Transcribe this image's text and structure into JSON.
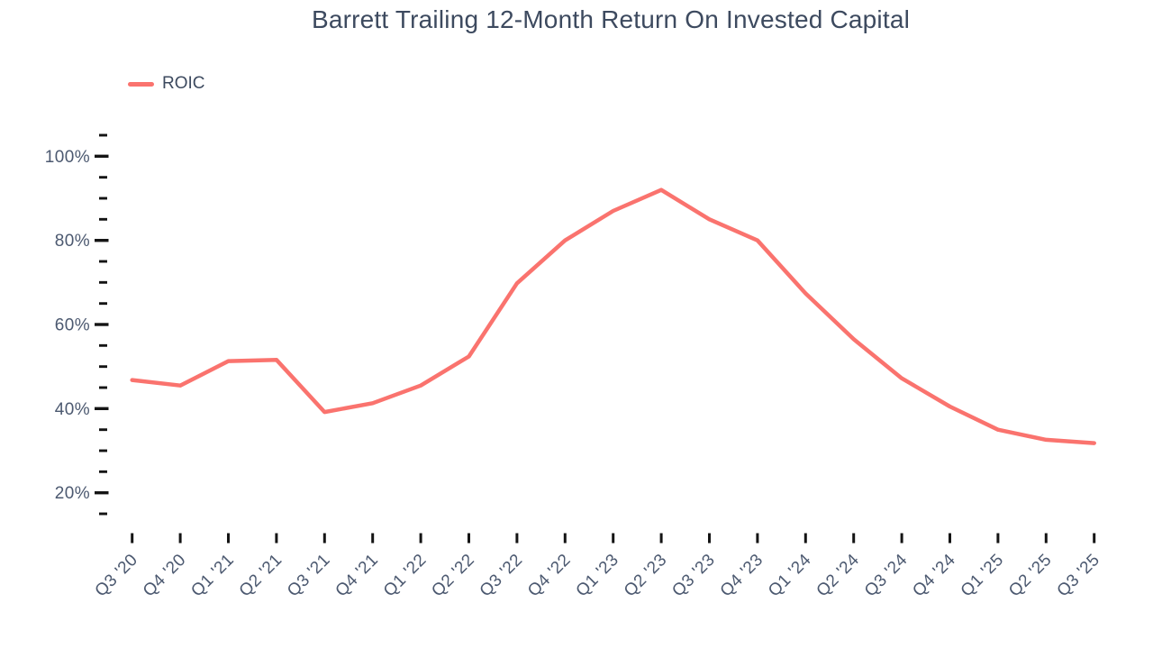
{
  "chart_data": {
    "type": "line",
    "title": "Barrett Trailing 12-Month Return On Invested Capital",
    "categories": [
      "Q3 '20",
      "Q4 '20",
      "Q1 '21",
      "Q2 '21",
      "Q3 '21",
      "Q4 '21",
      "Q1 '22",
      "Q2 '22",
      "Q3 '22",
      "Q4 '22",
      "Q1 '23",
      "Q2 '23",
      "Q3 '23",
      "Q4 '23",
      "Q1 '24",
      "Q2 '24",
      "Q3 '24",
      "Q4 '24",
      "Q1 '25",
      "Q2 '25",
      "Q3 '25"
    ],
    "series": [
      {
        "name": "ROIC",
        "color": "#FA736E",
        "values": [
          46.8,
          45.5,
          51.3,
          51.6,
          39.2,
          41.3,
          45.5,
          52.4,
          69.8,
          80.0,
          87.0,
          92.0,
          85.0,
          80.0,
          67.4,
          56.5,
          47.2,
          40.5,
          35.0,
          32.6,
          31.8
        ]
      }
    ],
    "xlabel": "",
    "ylabel": "",
    "y_axis": {
      "unit": "%",
      "major_ticks": [
        20,
        40,
        60,
        80,
        100
      ],
      "minor_tick_step": 5,
      "min_shown": 15,
      "max_shown": 105
    },
    "legend": {
      "position": "top-left",
      "entries": [
        "ROIC"
      ]
    },
    "grid": false
  },
  "colors": {
    "background": "#FFFFFF",
    "title_text": "#3D4A5F",
    "axis_text": "#4C5970",
    "tick": "#141414",
    "series_line": "#FA736E"
  }
}
